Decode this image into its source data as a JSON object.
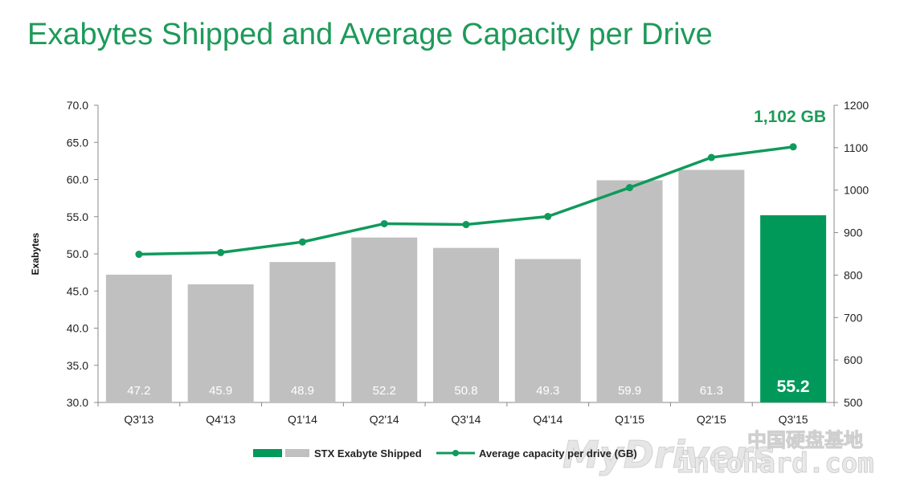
{
  "page": {
    "title": "Exabytes Shipped and Average Capacity per Drive"
  },
  "chart_data": {
    "type": "bar",
    "title": "Exabytes Shipped and Average Capacity per Drive",
    "categories": [
      "Q3'13",
      "Q4'13",
      "Q1'14",
      "Q2'14",
      "Q3'14",
      "Q4'14",
      "Q1'15",
      "Q2'15",
      "Q3'15"
    ],
    "ylabel": "Exabytes",
    "ylim": [
      30,
      70
    ],
    "y_ticks": [
      "30.0",
      "35.0",
      "40.0",
      "45.0",
      "50.0",
      "55.0",
      "60.0",
      "65.0",
      "70.0"
    ],
    "y2lim": [
      500,
      1200
    ],
    "y2_ticks": [
      "500",
      "600",
      "700",
      "800",
      "900",
      "1000",
      "1100",
      "1200"
    ],
    "grid": false,
    "legend_position": "bottom",
    "series": [
      {
        "name": "STX Exabyte Shipped",
        "type": "bar",
        "axis": "left",
        "values": [
          47.2,
          45.9,
          48.9,
          52.2,
          50.8,
          49.3,
          59.9,
          61.3,
          55.2
        ],
        "labels": [
          "47.2",
          "45.9",
          "48.9",
          "52.2",
          "50.8",
          "49.3",
          "59.9",
          "61.3",
          "55.2"
        ],
        "color": "#c0c0c0",
        "highlight_color": "#00995a",
        "highlight_index": 8
      },
      {
        "name": "Average capacity per drive (GB)",
        "type": "line",
        "axis": "right",
        "values": [
          849,
          853,
          878,
          921,
          919,
          938,
          1006,
          1077,
          1102
        ],
        "color": "#0f9a5c"
      }
    ],
    "annotation": "1,102 GB"
  },
  "watermark": {
    "line1": "MyDrivers",
    "line2": "intohard.com",
    "cjk": "中国硬盘基地"
  }
}
